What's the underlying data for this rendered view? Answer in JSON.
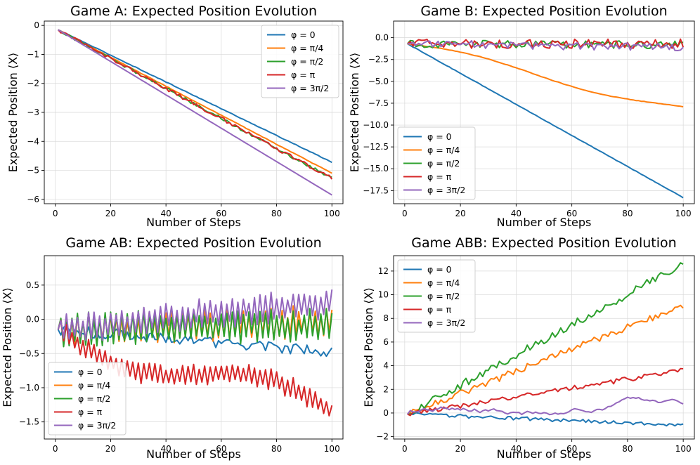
{
  "chart_data": [
    {
      "type": "line",
      "title": "Game A: Expected Position Evolution",
      "xlabel": "Number of Steps",
      "ylabel": "Expected Position ⟨X⟩",
      "xlim": [
        -4,
        104
      ],
      "ylim": [
        -6.15,
        0.15
      ],
      "xticks": [
        0,
        20,
        40,
        60,
        80,
        100
      ],
      "yticks": [
        0,
        -1,
        -2,
        -3,
        -4,
        -5,
        -6
      ],
      "ytick_labels": [
        "0",
        "−1",
        "−2",
        "−3",
        "−4",
        "−5",
        "−6"
      ],
      "legend": "top-right",
      "grid": true,
      "series": [
        {
          "name": "φ = 0",
          "color": "#1f77b4",
          "start": -0.15,
          "end": -4.72,
          "noise": 0.02,
          "mode": "smooth"
        },
        {
          "name": "φ = π/4",
          "color": "#ff7f0e",
          "start": -0.15,
          "end": -5.1,
          "noise": 0.02,
          "mode": "smooth"
        },
        {
          "name": "φ = π/2",
          "color": "#2ca02c",
          "start": -0.15,
          "end": -5.28,
          "noise": 0.05,
          "mode": "jitter"
        },
        {
          "name": "φ = π",
          "color": "#d62728",
          "start": -0.15,
          "end": -5.28,
          "noise": 0.06,
          "mode": "jitter"
        },
        {
          "name": "φ = 3π/2",
          "color": "#9467bd",
          "start": -0.15,
          "end": -5.85,
          "noise": 0.0,
          "mode": "smooth"
        }
      ]
    },
    {
      "type": "line",
      "title": "Game B: Expected Position Evolution",
      "xlabel": "Number of Steps",
      "ylabel": "Expected Position ⟨X⟩",
      "xlim": [
        -4,
        104
      ],
      "ylim": [
        -19.0,
        1.9
      ],
      "xticks": [
        0,
        20,
        40,
        60,
        80,
        100
      ],
      "yticks": [
        0,
        -2.5,
        -5,
        -7.5,
        -10,
        -12.5,
        -15,
        -17.5
      ],
      "ytick_labels": [
        "0.0",
        "−2.5",
        "−5.0",
        "−7.5",
        "−10.0",
        "−12.5",
        "−15.0",
        "−17.5"
      ],
      "legend": "bottom-left",
      "grid": true,
      "series": [
        {
          "name": "φ = 0",
          "color": "#1f77b4",
          "start": -0.7,
          "end": -18.3,
          "noise": 0.05,
          "mode": "smooth"
        },
        {
          "name": "φ = π/4",
          "color": "#ff7f0e",
          "start": -0.7,
          "end": -8.2,
          "noise": 0.05,
          "mode": "wavy"
        },
        {
          "name": "φ = π/2",
          "color": "#2ca02c",
          "start": -0.7,
          "end": -0.8,
          "noise": 0.45,
          "mode": "jitter"
        },
        {
          "name": "φ = π",
          "color": "#d62728",
          "start": -0.7,
          "end": -0.7,
          "noise": 0.55,
          "mode": "jitter"
        },
        {
          "name": "φ = 3π/2",
          "color": "#9467bd",
          "start": -0.7,
          "end": -1.1,
          "noise": 0.45,
          "mode": "jitter"
        }
      ]
    },
    {
      "type": "line",
      "title": "Game AB: Expected Position Evolution",
      "xlabel": "Number of Steps",
      "ylabel": "Expected Position ⟨X⟩",
      "xlim": [
        -4,
        104
      ],
      "ylim": [
        -1.75,
        0.93
      ],
      "xticks": [
        0,
        20,
        40,
        60,
        80,
        100
      ],
      "yticks": [
        0.5,
        0,
        -0.5,
        -1,
        -1.5
      ],
      "ytick_labels": [
        "0.5",
        "0.0",
        "−0.5",
        "−1.0",
        "−1.5"
      ],
      "legend": "bottom-left",
      "grid": true,
      "series": [
        {
          "name": "φ = 0",
          "color": "#1f77b4",
          "start": -0.15,
          "end": -0.48,
          "noise": 0.08,
          "mode": "jitter"
        },
        {
          "name": "φ = π/4",
          "color": "#ff7f0e",
          "start": -0.15,
          "end": -0.05,
          "noise": 0.45,
          "mode": "zigzag"
        },
        {
          "name": "φ = π/2",
          "color": "#2ca02c",
          "start": -0.15,
          "end": -0.08,
          "noise": 0.5,
          "mode": "zigzag"
        },
        {
          "name": "φ = π",
          "color": "#d62728",
          "start": -0.15,
          "end": -1.42,
          "noise": 0.3,
          "mode": "zigzag"
        },
        {
          "name": "φ = 3π/2",
          "color": "#9467bd",
          "start": -0.15,
          "end": 0.25,
          "noise": 0.42,
          "mode": "zigzag"
        }
      ]
    },
    {
      "type": "line",
      "title": "Game ABB: Expected Position Evolution",
      "xlabel": "Number of Steps",
      "ylabel": "Expected Position ⟨X⟩",
      "xlim": [
        -4,
        104
      ],
      "ylim": [
        -2.2,
        13.3
      ],
      "xticks": [
        0,
        20,
        40,
        60,
        80,
        100
      ],
      "yticks": [
        12,
        10,
        8,
        6,
        4,
        2,
        0,
        -2
      ],
      "ytick_labels": [
        "12",
        "10",
        "8",
        "6",
        "4",
        "2",
        "0",
        "−2"
      ],
      "legend": "top-left",
      "grid": true,
      "series": [
        {
          "name": "φ = 0",
          "color": "#1f77b4",
          "start": -0.1,
          "end": -1.0,
          "noise": 0.15,
          "mode": "jitter"
        },
        {
          "name": "φ = π/4",
          "color": "#ff7f0e",
          "start": -0.1,
          "end": 9.1,
          "noise": 0.3,
          "mode": "jitter"
        },
        {
          "name": "φ = π/2",
          "color": "#2ca02c",
          "start": -0.1,
          "end": 12.6,
          "noise": 0.35,
          "mode": "jitter"
        },
        {
          "name": "φ = π",
          "color": "#d62728",
          "start": -0.1,
          "end": 3.6,
          "noise": 0.2,
          "mode": "jitter"
        },
        {
          "name": "φ = 3π/2",
          "color": "#9467bd",
          "start": -0.1,
          "end": 0.8,
          "noise": 0.35,
          "mode": "wander"
        }
      ]
    }
  ]
}
